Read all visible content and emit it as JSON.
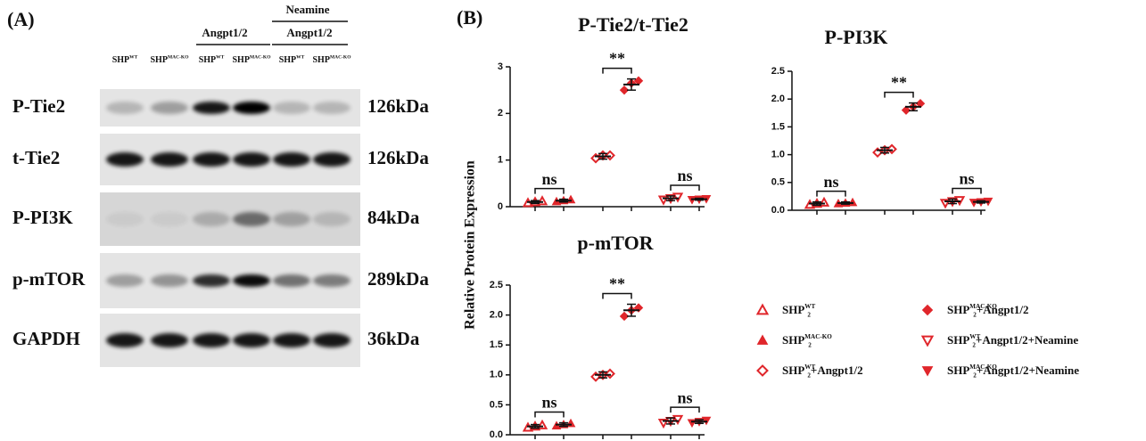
{
  "panel_a": {
    "label": "(A)",
    "header_neamine": "Neamine",
    "header_angpt": "Angpt1/2",
    "header_angpt2": "Angpt1/2",
    "lanes": [
      {
        "base": "SHP",
        "sup": "WT"
      },
      {
        "base": "SHP",
        "sup": "MAC-KO"
      },
      {
        "base": "SHP",
        "sup": "WT"
      },
      {
        "base": "SHP",
        "sup": "MAC-KO"
      },
      {
        "base": "SHP",
        "sup": "WT"
      },
      {
        "base": "SHP",
        "sup": "MAC-KO"
      }
    ],
    "rows": [
      {
        "name": "P-Tie2",
        "size": "126kDa"
      },
      {
        "name": "t-Tie2",
        "size": "126kDa"
      },
      {
        "name": "P-PI3K",
        "size": "84kDa"
      },
      {
        "name": "p-mTOR",
        "size": "289kDa"
      },
      {
        "name": "GAPDH",
        "size": "36kDa"
      }
    ]
  },
  "panel_b_label": "(B)",
  "y_label": "Relative Protein Expression",
  "legend": [
    {
      "base": "SHP",
      "sub": "2",
      "sup": "WT",
      "marker": "triangle-up-open"
    },
    {
      "base": "SHP",
      "sub": "2",
      "sup": "MAC-KO",
      "marker": "triangle-up"
    },
    {
      "base": "SHP",
      "sub": "2",
      "sup": "WT",
      "suffix": "+Angpt1/2",
      "marker": "diamond-open"
    },
    {
      "base": "SHP",
      "sub": "2",
      "sup": "MAC-KO",
      "suffix": "+Angpt1/2",
      "marker": "diamond"
    },
    {
      "base": "SHP",
      "sub": "2",
      "sup": "WT",
      "suffix": "+Angpt1/2+Neamine",
      "marker": "triangle-down-open"
    },
    {
      "base": "SHP",
      "sub": "2",
      "sup": "MAC-KO",
      "suffix": "+Angpt1/2+Neamine",
      "marker": "triangle-down"
    }
  ],
  "chart_data": [
    {
      "type": "dot",
      "title": "P-Tie2/t-Tie2",
      "color": "#e0262b",
      "ylim": [
        0,
        3
      ],
      "yticks": [
        0,
        1,
        2,
        3
      ],
      "series": [
        {
          "marker": "triangle-up-open",
          "values": [
            0.08,
            0.1,
            0.12
          ],
          "mean": 0.1,
          "error": 0.03
        },
        {
          "marker": "triangle-up",
          "values": [
            0.11,
            0.13,
            0.15
          ],
          "mean": 0.13,
          "error": 0.03
        },
        {
          "marker": "diamond-open",
          "values": [
            1.04,
            1.1,
            1.1
          ],
          "mean": 1.08,
          "error": 0.06
        },
        {
          "marker": "diamond",
          "values": [
            2.5,
            2.65,
            2.7
          ],
          "mean": 2.62,
          "error": 0.12
        },
        {
          "marker": "triangle-down-open",
          "values": [
            0.15,
            0.18,
            0.21
          ],
          "mean": 0.18,
          "error": 0.05
        },
        {
          "marker": "triangle-down",
          "values": [
            0.15,
            0.16,
            0.17
          ],
          "mean": 0.16,
          "error": 0.02
        }
      ],
      "annotations": [
        {
          "text": "ns",
          "groups": [
            0,
            1
          ]
        },
        {
          "text": "**",
          "groups": [
            2,
            3
          ]
        },
        {
          "text": "ns",
          "groups": [
            4,
            5
          ]
        }
      ]
    },
    {
      "type": "dot",
      "title": "P-PI3K",
      "color": "#e0262b",
      "ylim": [
        0,
        2.5
      ],
      "yticks": [
        {
          "value": 0,
          "label": "0.0"
        },
        0.5,
        {
          "value": 1,
          "label": "1.0"
        },
        1.5,
        {
          "value": 2,
          "label": "2.0"
        },
        2.5
      ],
      "series": [
        {
          "marker": "triangle-up-open",
          "values": [
            0.1,
            0.12,
            0.14
          ],
          "mean": 0.12,
          "error": 0.03
        },
        {
          "marker": "triangle-up",
          "values": [
            0.12,
            0.13,
            0.14
          ],
          "mean": 0.13,
          "error": 0.02
        },
        {
          "marker": "diamond-open",
          "values": [
            1.04,
            1.08,
            1.1
          ],
          "mean": 1.08,
          "error": 0.05
        },
        {
          "marker": "diamond",
          "values": [
            1.8,
            1.86,
            1.92
          ],
          "mean": 1.86,
          "error": 0.07
        },
        {
          "marker": "triangle-down-open",
          "values": [
            0.13,
            0.16,
            0.18
          ],
          "mean": 0.16,
          "error": 0.04
        },
        {
          "marker": "triangle-down",
          "values": [
            0.14,
            0.15,
            0.16
          ],
          "mean": 0.15,
          "error": 0.02
        }
      ],
      "annotations": [
        {
          "text": "ns",
          "groups": [
            0,
            1
          ]
        },
        {
          "text": "**",
          "groups": [
            2,
            3
          ]
        },
        {
          "text": "ns",
          "groups": [
            4,
            5
          ]
        }
      ]
    },
    {
      "type": "dot",
      "title": "p-mTOR",
      "color": "#e0262b",
      "ylim": [
        0,
        2.5
      ],
      "yticks": [
        {
          "value": 0,
          "label": "0.0"
        },
        0.5,
        {
          "value": 1,
          "label": "1.0"
        },
        1.5,
        {
          "value": 2,
          "label": "2.0"
        },
        2.5
      ],
      "series": [
        {
          "marker": "triangle-up-open",
          "values": [
            0.12,
            0.14,
            0.16
          ],
          "mean": 0.14,
          "error": 0.03
        },
        {
          "marker": "triangle-up",
          "values": [
            0.15,
            0.17,
            0.19
          ],
          "mean": 0.17,
          "error": 0.03
        },
        {
          "marker": "diamond-open",
          "values": [
            0.97,
            1.0,
            1.02
          ],
          "mean": 1.0,
          "error": 0.05
        },
        {
          "marker": "diamond",
          "values": [
            1.98,
            2.08,
            2.12
          ],
          "mean": 2.08,
          "error": 0.1
        },
        {
          "marker": "triangle-down-open",
          "values": [
            0.2,
            0.23,
            0.26
          ],
          "mean": 0.23,
          "error": 0.05
        },
        {
          "marker": "triangle-down",
          "values": [
            0.2,
            0.22,
            0.24
          ],
          "mean": 0.22,
          "error": 0.03
        }
      ],
      "annotations": [
        {
          "text": "ns",
          "groups": [
            0,
            1
          ]
        },
        {
          "text": "**",
          "groups": [
            2,
            3
          ]
        },
        {
          "text": "ns",
          "groups": [
            4,
            5
          ]
        }
      ]
    }
  ]
}
